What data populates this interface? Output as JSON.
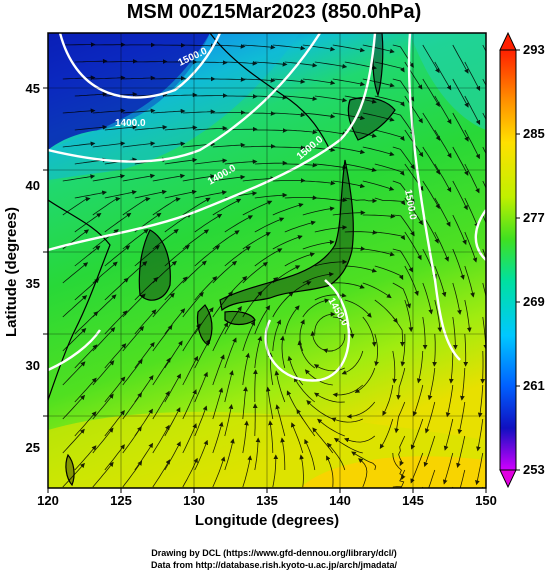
{
  "title": "MSM 00Z15Mar2023 (850.0hPa)",
  "xaxis": {
    "label": "Longitude (degrees)",
    "ticks": [
      "120",
      "125",
      "130",
      "135",
      "140",
      "145",
      "150"
    ],
    "range": [
      120,
      150
    ]
  },
  "yaxis": {
    "label": "Latitude  (degrees)",
    "ticks": [
      "25",
      "30",
      "35",
      "40",
      "45"
    ],
    "range": [
      23,
      48
    ]
  },
  "colorbar": {
    "ticks": [
      "293",
      "285",
      "277",
      "269",
      "261",
      "253"
    ],
    "range": [
      253,
      293
    ],
    "colors": [
      "#d000ff",
      "#1010c0",
      "#0060ff",
      "#00c8ff",
      "#00e0a0",
      "#20e020",
      "#60e010",
      "#c0f000",
      "#ffe000",
      "#ff9000",
      "#ff2000"
    ]
  },
  "contour_labels": [
    "1400.0",
    "1500.0",
    "1400.0",
    "1500.0",
    "1500.0",
    "1450.0"
  ],
  "credits": {
    "line1": "Drawing by DCL (https://www.gfd-dennou.org/library/dcl/)",
    "line2": "Data from http://database.rish.kyoto-u.ac.jp/arch/jmadata/"
  },
  "colors": {
    "contour": "#ffffff",
    "streamline": "#000000",
    "coastline": "#000000"
  }
}
